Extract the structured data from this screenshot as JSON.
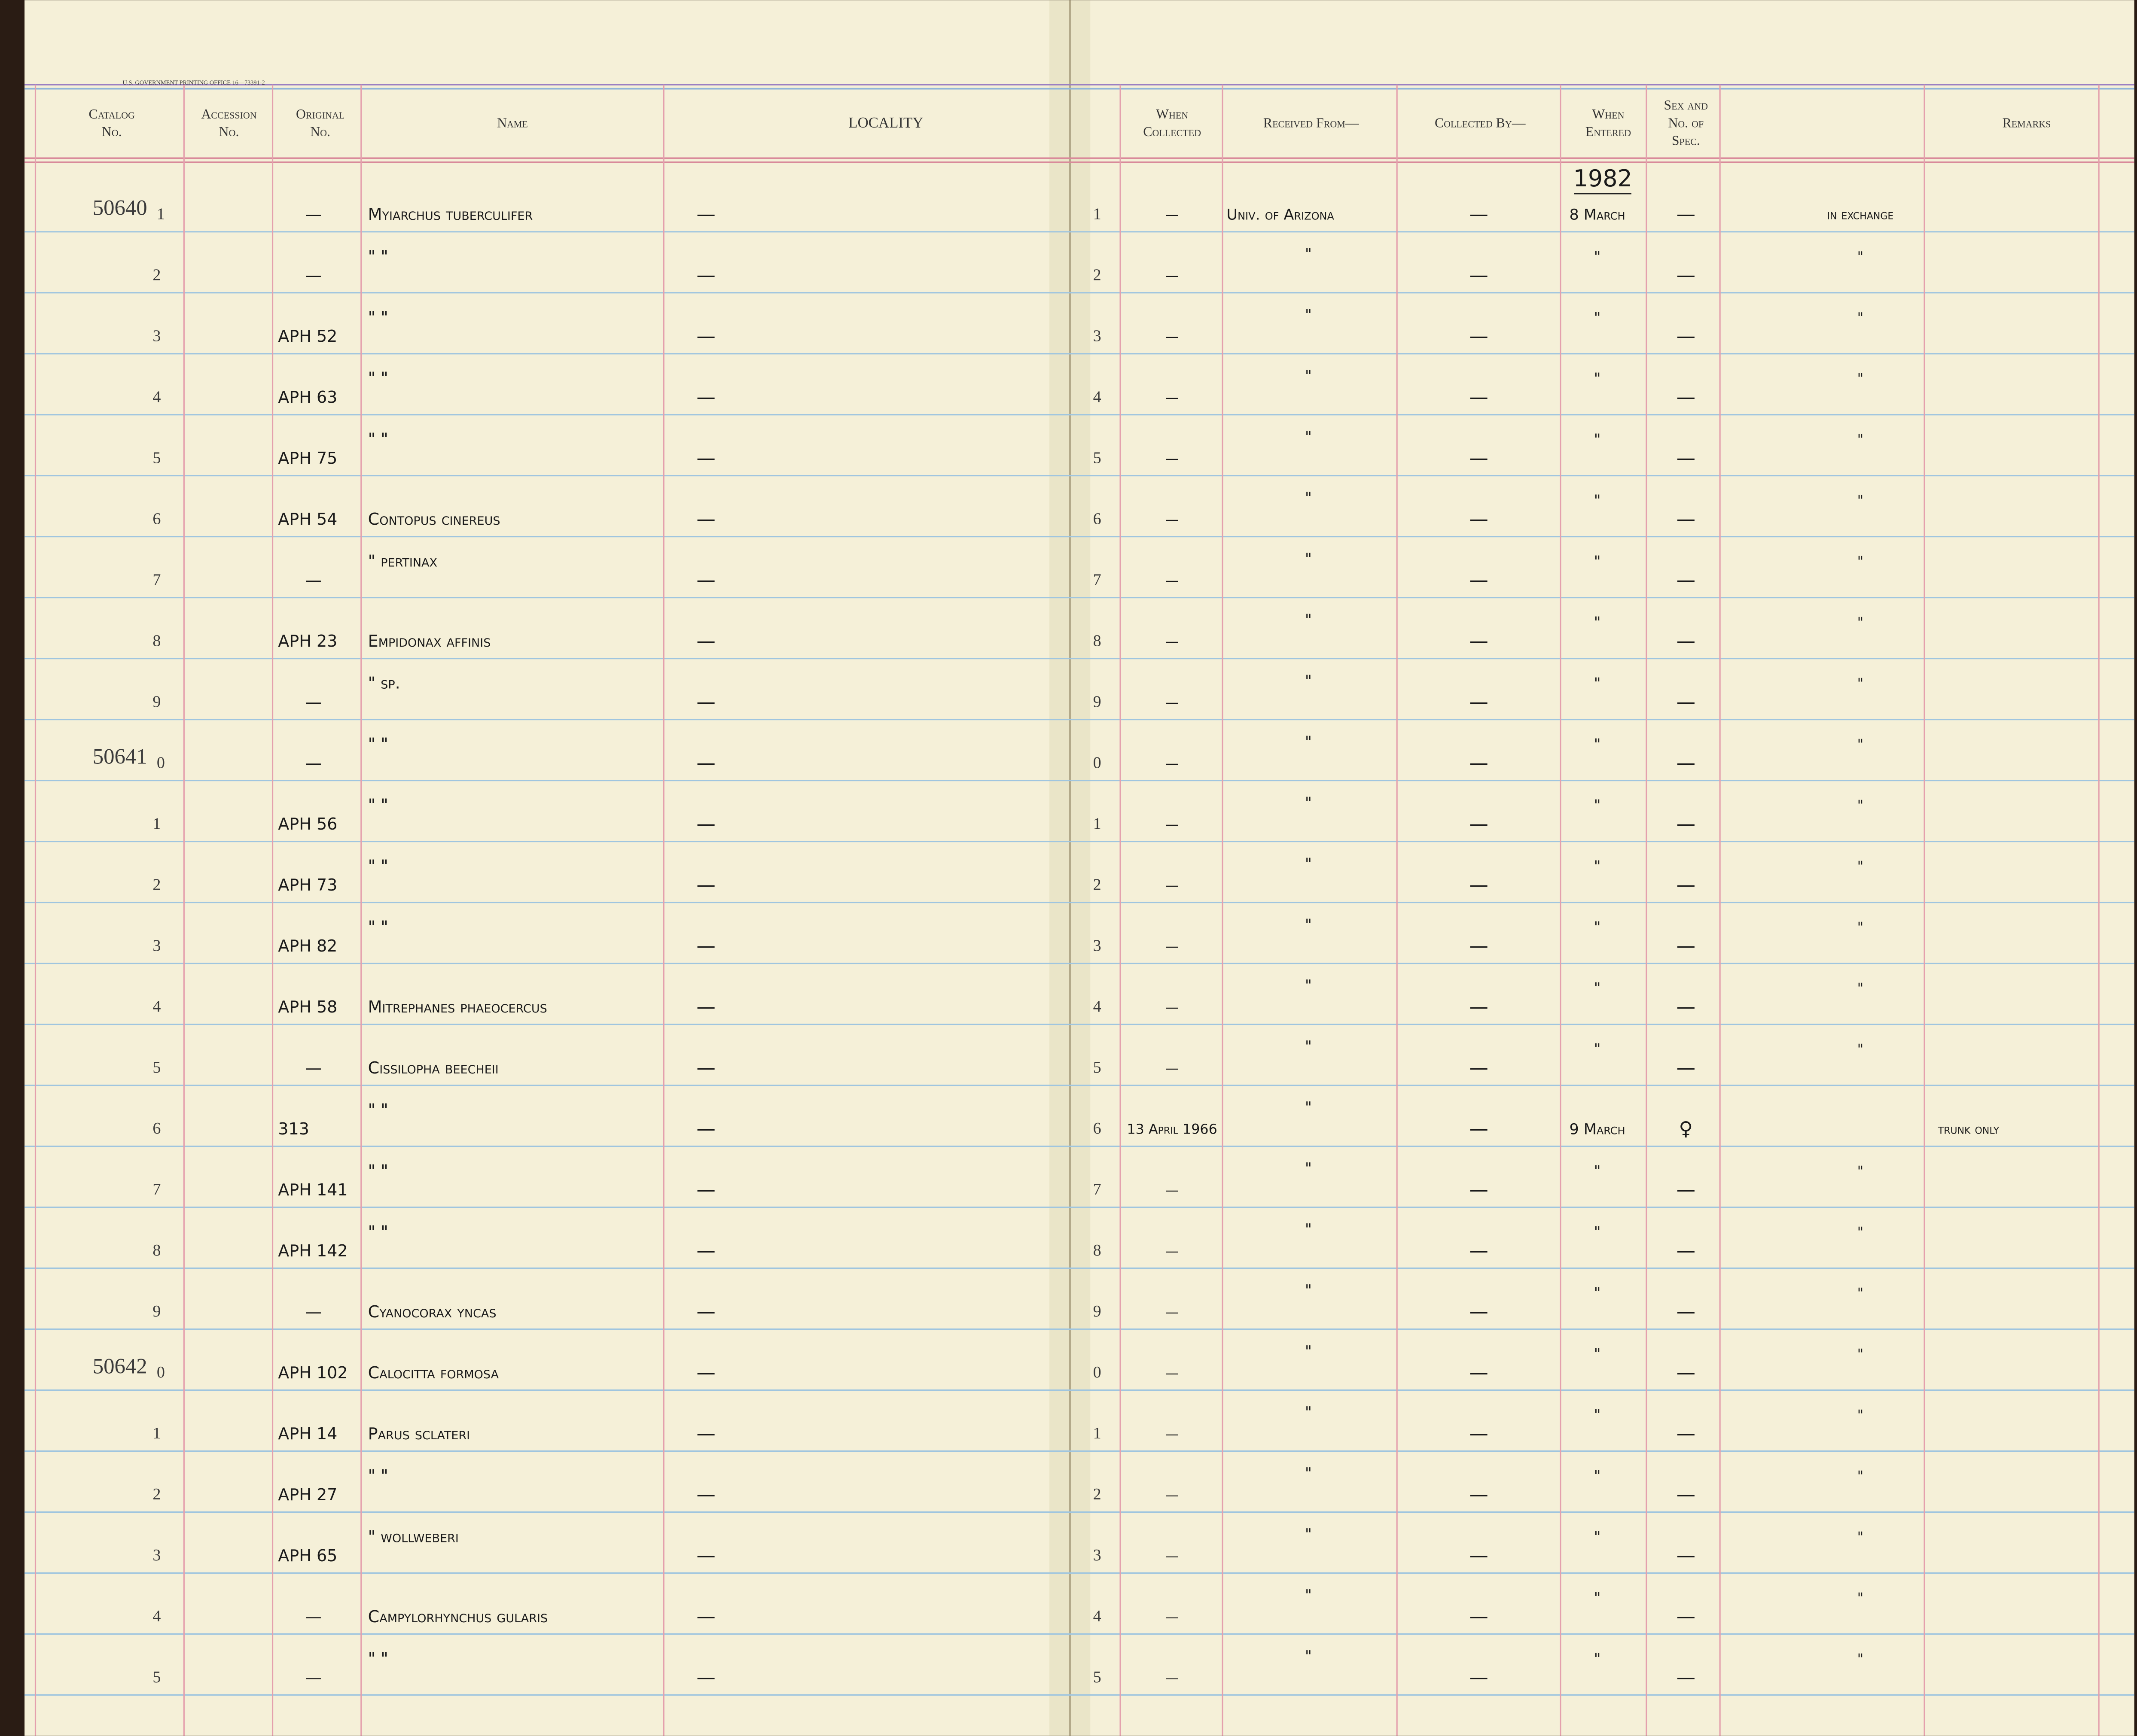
{
  "header": {
    "gpo": "U.S. GOVERNMENT PRINTING OFFICE 16—73391-2",
    "columns": [
      [
        "Catalog",
        "No."
      ],
      [
        "Accession",
        "No."
      ],
      [
        "Original",
        "No."
      ],
      [
        "Name"
      ],
      [
        "LOCALITY"
      ],
      [
        "When",
        "Collected"
      ],
      [
        "Received From—"
      ],
      [
        "Collected By—"
      ],
      [
        "When",
        "Entered"
      ],
      [
        "Sex and",
        "No. of",
        "Spec."
      ],
      [
        "Remarks"
      ]
    ],
    "year": "1982"
  },
  "rows": [
    {
      "catalog": "50640",
      "line": "1",
      "original": "—",
      "name": "Myiarchus tuberculifer",
      "locality": "—",
      "rline": "1",
      "collected": "—",
      "received": "Univ. of Arizona",
      "by": "—",
      "entered": "8 March",
      "sex": "—",
      "remarks": "in exchange"
    },
    {
      "line": "2",
      "original": "—",
      "name": "\"        \"",
      "locality": "—",
      "rline": "2",
      "collected": "—",
      "received": "\"",
      "by": "—",
      "entered": "\"",
      "sex": "—",
      "remarks": "\""
    },
    {
      "line": "3",
      "original": "APH 52",
      "name": "\"        \"",
      "locality": "—",
      "rline": "3",
      "collected": "—",
      "received": "\"",
      "by": "—",
      "entered": "\"",
      "sex": "—",
      "remarks": "\""
    },
    {
      "line": "4",
      "original": "APH 63",
      "name": "\"        \"",
      "locality": "—",
      "rline": "4",
      "collected": "—",
      "received": "\"",
      "by": "—",
      "entered": "\"",
      "sex": "—",
      "remarks": "\""
    },
    {
      "line": "5",
      "original": "APH 75",
      "name": "\"        \"",
      "locality": "—",
      "rline": "5",
      "collected": "—",
      "received": "\"",
      "by": "—",
      "entered": "\"",
      "sex": "—",
      "remarks": "\""
    },
    {
      "line": "6",
      "original": "APH 54",
      "name": "Contopus cinereus",
      "locality": "—",
      "rline": "6",
      "collected": "—",
      "received": "\"",
      "by": "—",
      "entered": "\"",
      "sex": "—",
      "remarks": "\""
    },
    {
      "line": "7",
      "original": "—",
      "name": "\"           pertinax",
      "locality": "—",
      "rline": "7",
      "collected": "—",
      "received": "\"",
      "by": "—",
      "entered": "\"",
      "sex": "—",
      "remarks": "\""
    },
    {
      "line": "8",
      "original": "APH 23",
      "name": "Empidonax affinis",
      "locality": "—",
      "rline": "8",
      "collected": "—",
      "received": "\"",
      "by": "—",
      "entered": "\"",
      "sex": "—",
      "remarks": "\""
    },
    {
      "line": "9",
      "original": "—",
      "name": "\"           sp.",
      "locality": "—",
      "rline": "9",
      "collected": "—",
      "received": "\"",
      "by": "—",
      "entered": "\"",
      "sex": "—",
      "remarks": "\""
    },
    {
      "catalog": "50641",
      "line": "0",
      "original": "—",
      "name": "\"        \"",
      "locality": "—",
      "rline": "0",
      "collected": "—",
      "received": "\"",
      "by": "—",
      "entered": "\"",
      "sex": "—",
      "remarks": "\""
    },
    {
      "line": "1",
      "original": "APH 56",
      "name": "\"        \"",
      "locality": "—",
      "rline": "1",
      "collected": "—",
      "received": "\"",
      "by": "—",
      "entered": "\"",
      "sex": "—",
      "remarks": "\""
    },
    {
      "line": "2",
      "original": "APH 73",
      "name": "\"        \"",
      "locality": "—",
      "rline": "2",
      "collected": "—",
      "received": "\"",
      "by": "—",
      "entered": "\"",
      "sex": "—",
      "remarks": "\""
    },
    {
      "line": "3",
      "original": "APH 82",
      "name": "\"        \"",
      "locality": "—",
      "rline": "3",
      "collected": "—",
      "received": "\"",
      "by": "—",
      "entered": "\"",
      "sex": "—",
      "remarks": "\""
    },
    {
      "line": "4",
      "original": "APH 58",
      "name": "Mitrephanes phaeocercus",
      "locality": "—",
      "rline": "4",
      "collected": "—",
      "received": "\"",
      "by": "—",
      "entered": "\"",
      "sex": "—",
      "remarks": "\""
    },
    {
      "line": "5",
      "original": "—",
      "name": "Cissilopha beecheii",
      "locality": "—",
      "rline": "5",
      "collected": "—",
      "received": "\"",
      "by": "—",
      "entered": "\"",
      "sex": "—",
      "remarks": "\""
    },
    {
      "line": "6",
      "original": "313",
      "name": "\"        \"",
      "locality": "—",
      "rline": "6",
      "collected": "13 April 1966",
      "received": "\"",
      "by": "—",
      "entered": "9 March",
      "sex": "♀",
      "remarks_right": "trunk only"
    },
    {
      "line": "7",
      "original": "APH 141",
      "name": "\"        \"",
      "locality": "—",
      "rline": "7",
      "collected": "—",
      "received": "\"",
      "by": "—",
      "entered": "\"",
      "sex": "—",
      "remarks": "\""
    },
    {
      "line": "8",
      "original": "APH 142",
      "name": "\"        \"",
      "locality": "—",
      "rline": "8",
      "collected": "—",
      "received": "\"",
      "by": "—",
      "entered": "\"",
      "sex": "—",
      "remarks": "\""
    },
    {
      "line": "9",
      "original": "—",
      "name": "Cyanocorax yncas",
      "locality": "—",
      "rline": "9",
      "collected": "—",
      "received": "\"",
      "by": "—",
      "entered": "\"",
      "sex": "—",
      "remarks": "\""
    },
    {
      "catalog": "50642",
      "line": "0",
      "original": "APH 102",
      "name": "Calocitta formosa",
      "locality": "—",
      "rline": "0",
      "collected": "—",
      "received": "\"",
      "by": "—",
      "entered": "\"",
      "sex": "—",
      "remarks": "\""
    },
    {
      "line": "1",
      "original": "APH 14",
      "name": "Parus sclateri",
      "locality": "—",
      "rline": "1",
      "collected": "—",
      "received": "\"",
      "by": "—",
      "entered": "\"",
      "sex": "—",
      "remarks": "\""
    },
    {
      "line": "2",
      "original": "APH 27",
      "name": "\"        \"",
      "locality": "—",
      "rline": "2",
      "collected": "—",
      "received": "\"",
      "by": "—",
      "entered": "\"",
      "sex": "—",
      "remarks": "\""
    },
    {
      "line": "3",
      "original": "APH 65",
      "name": "\"           wollweberi",
      "locality": "—",
      "rline": "3",
      "collected": "—",
      "received": "\"",
      "by": "—",
      "entered": "\"",
      "sex": "—",
      "remarks": "\""
    },
    {
      "line": "4",
      "original": "—",
      "name": "Campylorhynchus gularis",
      "locality": "—",
      "rline": "4",
      "collected": "—",
      "received": "\"",
      "by": "—",
      "entered": "\"",
      "sex": "—",
      "remarks": "\""
    },
    {
      "line": "5",
      "original": "—",
      "name": "\"        \"",
      "locality": "—",
      "rline": "5",
      "collected": "—",
      "received": "\"",
      "by": "—",
      "entered": "\"",
      "sex": "—",
      "remarks": "\""
    }
  ]
}
